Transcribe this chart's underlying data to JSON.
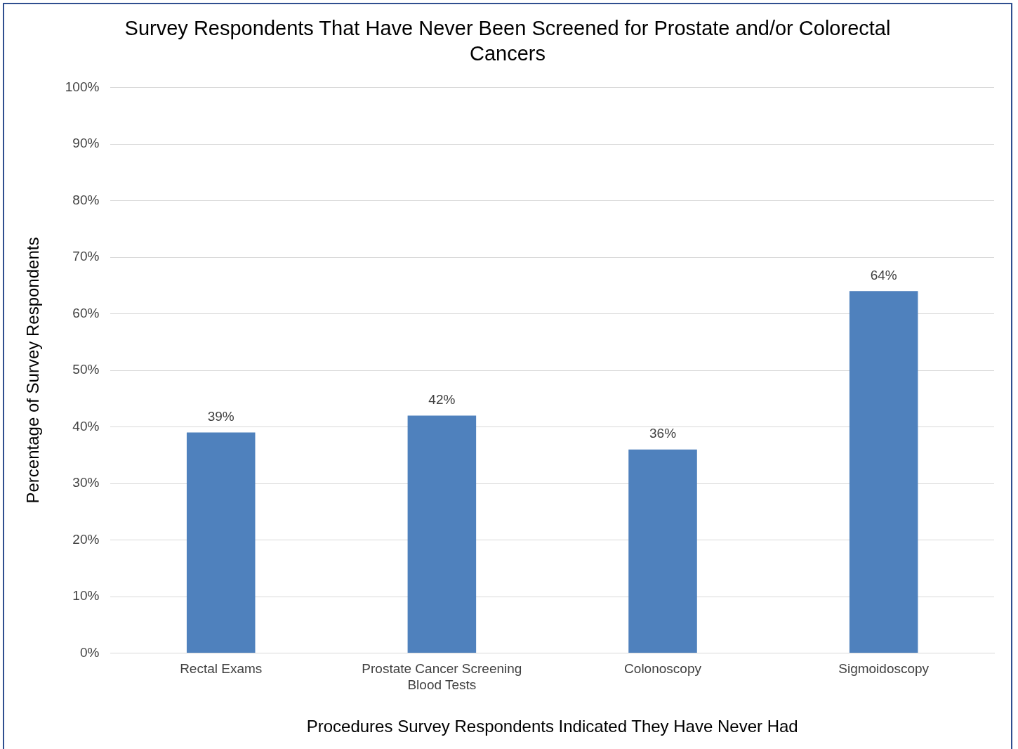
{
  "chart_data": {
    "type": "bar",
    "title": "Survey Respondents That Have Never Been Screened for Prostate and/or Colorectal Cancers",
    "xlabel": "Procedures Survey Respondents Indicated They Have Never Had",
    "ylabel": "Percentage of Survey Respondents",
    "categories": [
      "Rectal Exams",
      "Prostate Cancer Screening Blood Tests",
      "Colonoscopy",
      "Sigmoidoscopy"
    ],
    "values": [
      39,
      42,
      36,
      64
    ],
    "value_labels": [
      "39%",
      "42%",
      "36%",
      "64%"
    ],
    "color": "#4f81bd",
    "ylim": [
      0,
      100
    ],
    "yticks": [
      {
        "value": 0,
        "label": "0%"
      },
      {
        "value": 10,
        "label": "10%"
      },
      {
        "value": 20,
        "label": "20%"
      },
      {
        "value": 30,
        "label": "30%"
      },
      {
        "value": 40,
        "label": "40%"
      },
      {
        "value": 50,
        "label": "50%"
      },
      {
        "value": 60,
        "label": "60%"
      },
      {
        "value": 70,
        "label": "70%"
      },
      {
        "value": 80,
        "label": "80%"
      },
      {
        "value": 90,
        "label": "90%"
      },
      {
        "value": 100,
        "label": "100%"
      }
    ],
    "grid": "y",
    "legend": false
  }
}
